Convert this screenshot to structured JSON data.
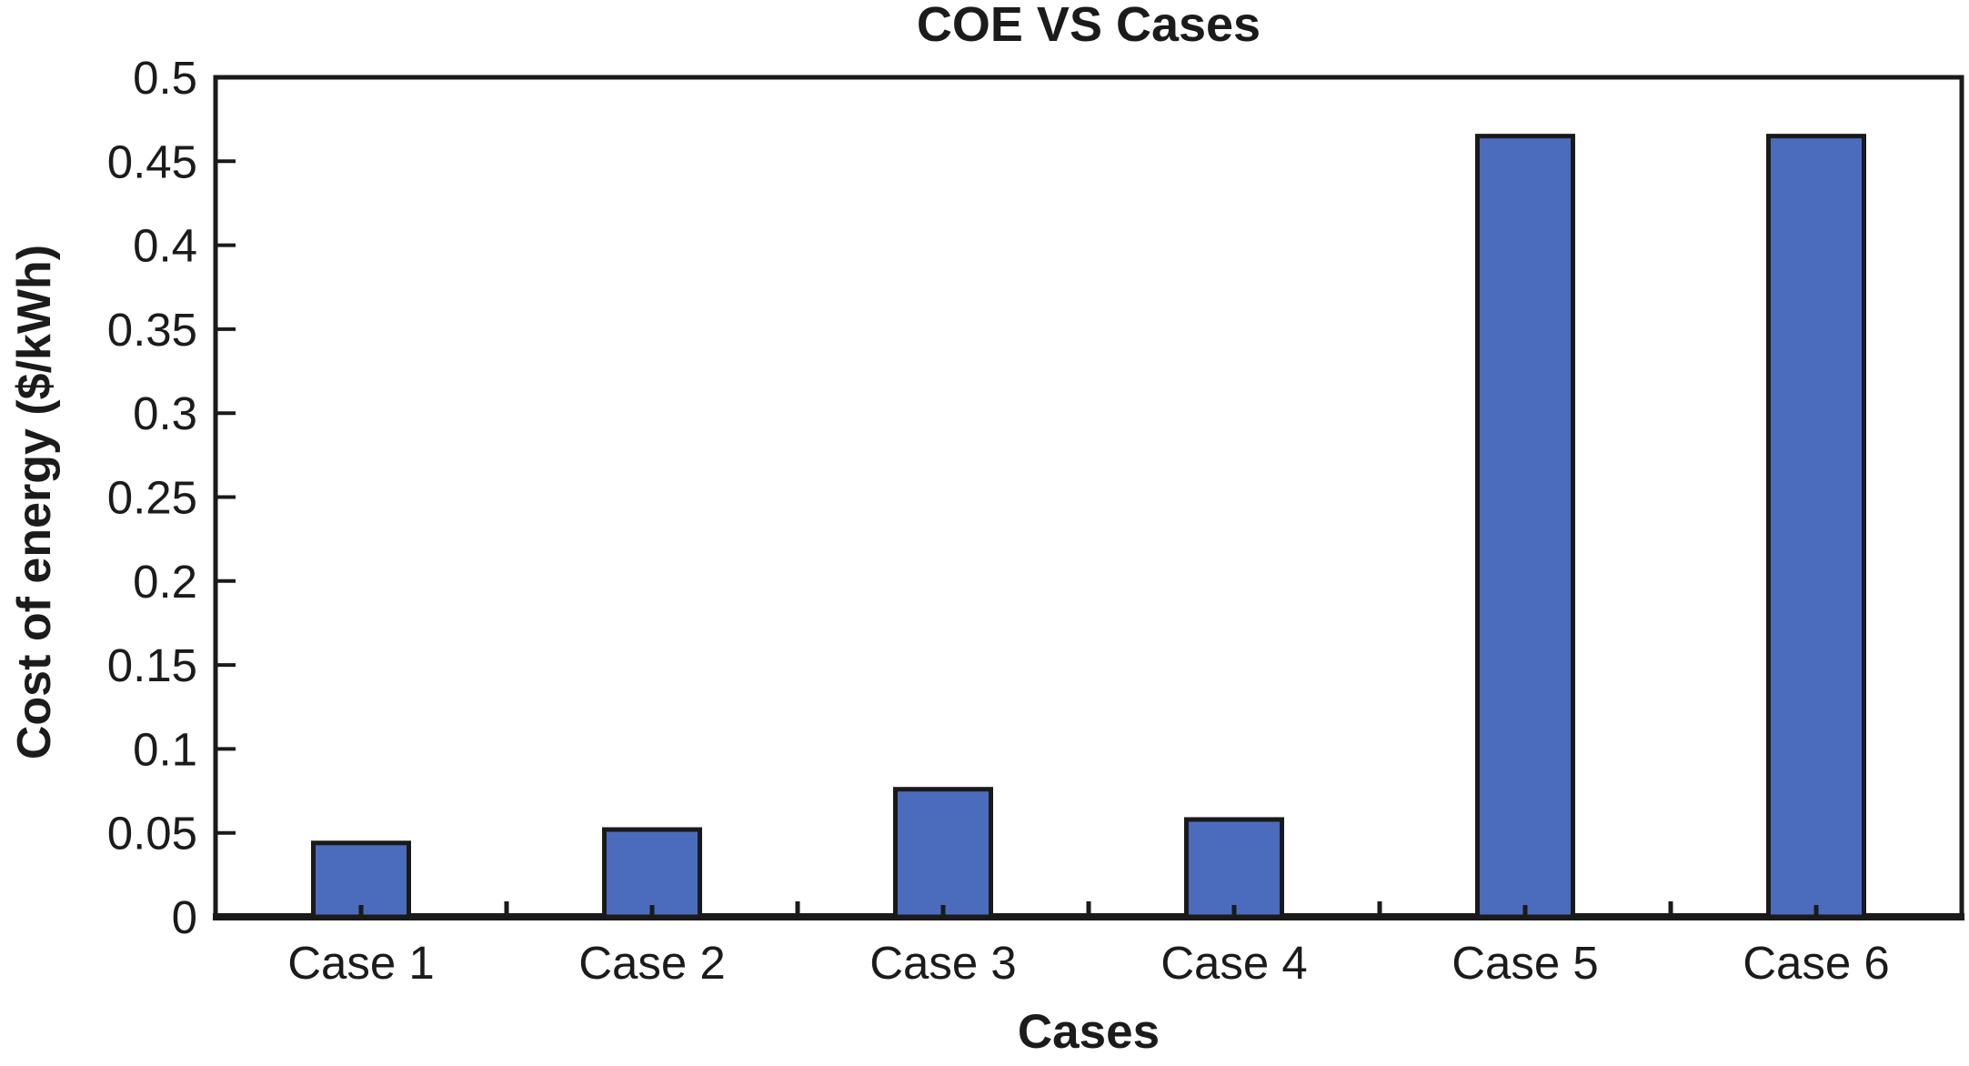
{
  "chart_data": {
    "type": "bar",
    "title": "COE VS Cases",
    "xlabel": "Cases",
    "ylabel": "Cost of energy ($/kWh)",
    "categories": [
      "Case 1",
      "Case 2",
      "Case 3",
      "Case 4",
      "Case 5",
      "Case 6"
    ],
    "values": [
      0.044,
      0.052,
      0.076,
      0.058,
      0.465,
      0.465
    ],
    "ylim": [
      0,
      0.5
    ],
    "ytick_step": 0.05,
    "ytick_labels": [
      "0",
      "0.05",
      "0.1",
      "0.15",
      "0.2",
      "0.25",
      "0.3",
      "0.35",
      "0.4",
      "0.45",
      "0.5"
    ],
    "grid": false,
    "legend": "none",
    "colors": {
      "bar_fill": "#4b6cbd",
      "bar_stroke": "#1a1a1a",
      "axis": "#1a1a1a",
      "text": "#1b1b1b",
      "background": "#ffffff"
    }
  }
}
